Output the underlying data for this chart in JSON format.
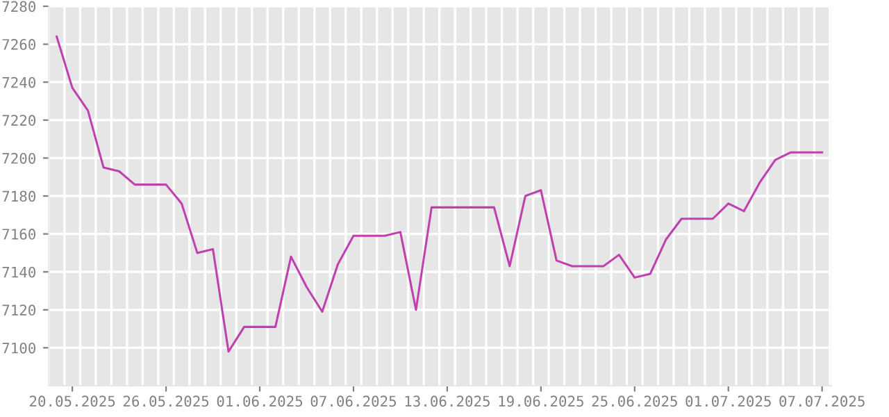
{
  "chart_data": {
    "type": "line",
    "x": [
      "2025-05-19",
      "2025-05-20",
      "2025-05-21",
      "2025-05-22",
      "2025-05-23",
      "2025-05-24",
      "2025-05-25",
      "2025-05-26",
      "2025-05-27",
      "2025-05-28",
      "2025-05-29",
      "2025-05-30",
      "2025-05-31",
      "2025-06-01",
      "2025-06-02",
      "2025-06-03",
      "2025-06-04",
      "2025-06-05",
      "2025-06-06",
      "2025-06-07",
      "2025-06-08",
      "2025-06-09",
      "2025-06-10",
      "2025-06-11",
      "2025-06-12",
      "2025-06-13",
      "2025-06-14",
      "2025-06-15",
      "2025-06-16",
      "2025-06-17",
      "2025-06-18",
      "2025-06-19",
      "2025-06-20",
      "2025-06-21",
      "2025-06-22",
      "2025-06-23",
      "2025-06-24",
      "2025-06-25",
      "2025-06-26",
      "2025-06-27",
      "2025-06-28",
      "2025-06-29",
      "2025-06-30",
      "2025-07-01",
      "2025-07-02",
      "2025-07-03",
      "2025-07-04",
      "2025-07-05",
      "2025-07-06",
      "2025-07-07"
    ],
    "series": [
      {
        "color": "#c040b0",
        "values": [
          7264,
          7237,
          7225,
          7195,
          7193,
          7186,
          7186,
          7186,
          7176,
          7150,
          7152,
          7098,
          7111,
          7111,
          7111,
          7148,
          7132,
          7119,
          7144,
          7159,
          7159,
          7159,
          7161,
          7120,
          7174,
          7174,
          7174,
          7174,
          7174,
          7143,
          7180,
          7183,
          7146,
          7143,
          7143,
          7143,
          7149,
          7137,
          7139,
          7157,
          7168,
          7168,
          7168,
          7176,
          7172,
          7187,
          7199,
          7203,
          7203,
          7203
        ]
      }
    ],
    "xlim": [
      "2025-05-18T12:00",
      "2025-07-07T14:00"
    ],
    "xticks": [
      {
        "value": "2025-05-20",
        "label": "20.05.2025"
      },
      {
        "value": "2025-05-26",
        "label": "26.05.2025"
      },
      {
        "value": "2025-06-01",
        "label": "01.06.2025"
      },
      {
        "value": "2025-06-07",
        "label": "07.06.2025"
      },
      {
        "value": "2025-06-13",
        "label": "13.06.2025"
      },
      {
        "value": "2025-06-19",
        "label": "19.06.2025"
      },
      {
        "value": "2025-06-25",
        "label": "25.06.2025"
      },
      {
        "value": "2025-07-01",
        "label": "01.07.2025"
      },
      {
        "value": "2025-07-07",
        "label": "07.07.2025"
      }
    ],
    "ylim": [
      7080,
      7280
    ],
    "yticks": [
      7100,
      7120,
      7140,
      7160,
      7180,
      7200,
      7220,
      7240,
      7260,
      7280
    ],
    "grid": true,
    "marker": "none",
    "line_style": "solid"
  }
}
